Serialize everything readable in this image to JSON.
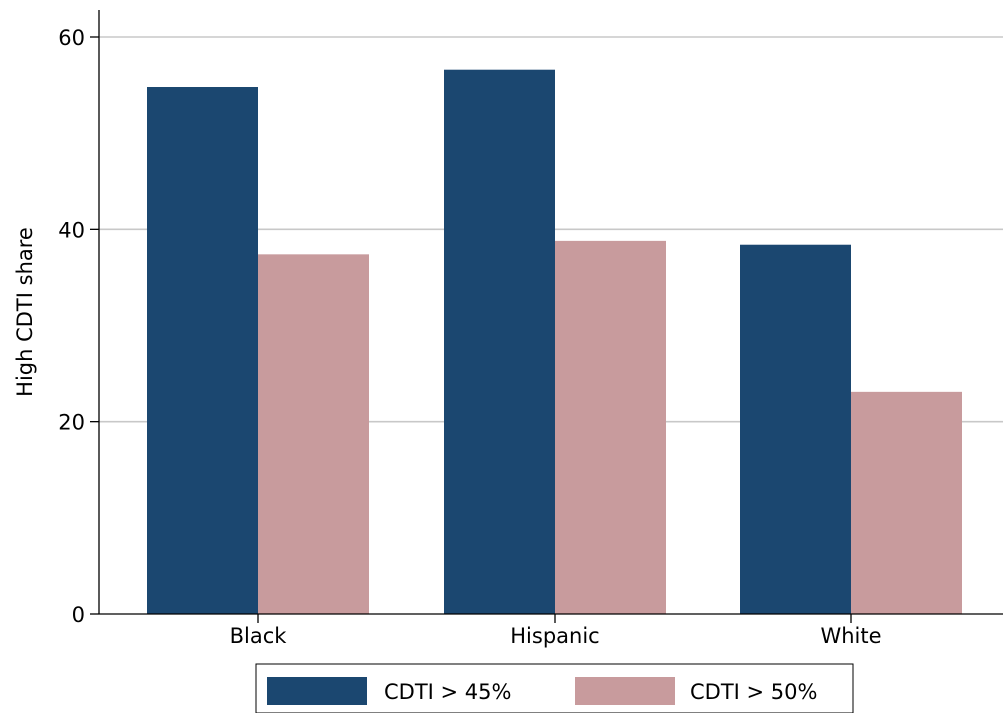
{
  "chart_data": {
    "type": "bar",
    "categories": [
      "Black",
      "Hispanic",
      "White"
    ],
    "series": [
      {
        "name": "CDTI > 45%",
        "values": [
          54.8,
          56.6,
          38.4
        ],
        "color": "#1b4770"
      },
      {
        "name": "CDTI > 50%",
        "values": [
          37.4,
          38.8,
          23.1
        ],
        "color": "#c89b9d"
      }
    ],
    "ylabel": "High CDTI share",
    "xlabel": "",
    "ylim": [
      0,
      60
    ],
    "yticks": [
      0,
      20,
      40,
      60
    ],
    "grid": true,
    "legend_position": "bottom"
  }
}
